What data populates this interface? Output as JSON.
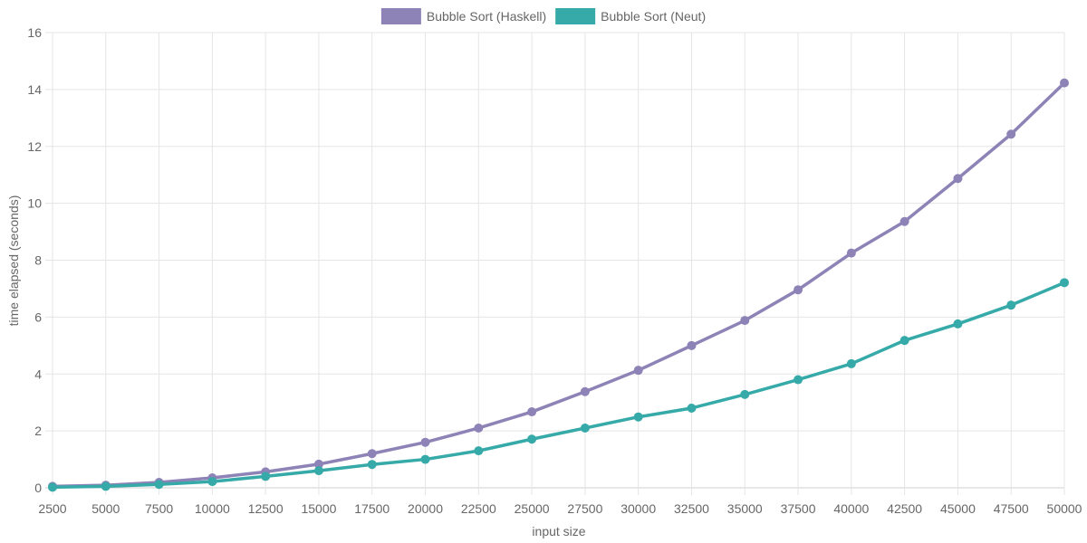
{
  "chart_data": {
    "type": "line",
    "title": "",
    "xlabel": "input size",
    "ylabel": "time elapsed (seconds)",
    "x": [
      2500,
      5000,
      7500,
      10000,
      12500,
      15000,
      17500,
      20000,
      22500,
      25000,
      27500,
      30000,
      32500,
      35000,
      37500,
      40000,
      42500,
      45000,
      47500,
      50000
    ],
    "xlim": [
      2500,
      50000
    ],
    "ylim": [
      0,
      16
    ],
    "yticks": [
      0,
      2,
      4,
      6,
      8,
      10,
      12,
      14,
      16
    ],
    "grid": true,
    "legend_position": "top-center",
    "series": [
      {
        "name": "Bubble Sort (Haskell)",
        "color": "#8e83b6",
        "values": [
          0.05,
          0.09,
          0.19,
          0.35,
          0.56,
          0.83,
          1.2,
          1.6,
          2.1,
          2.67,
          3.38,
          4.13,
          5.0,
          5.88,
          6.96,
          8.25,
          9.36,
          10.87,
          12.43,
          14.23
        ]
      },
      {
        "name": "Bubble Sort (Neut)",
        "color": "#36aaa8",
        "values": [
          0.02,
          0.05,
          0.12,
          0.22,
          0.4,
          0.6,
          0.82,
          1.0,
          1.3,
          1.71,
          2.1,
          2.49,
          2.8,
          3.28,
          3.8,
          4.36,
          5.18,
          5.76,
          6.42,
          7.21
        ]
      }
    ]
  }
}
